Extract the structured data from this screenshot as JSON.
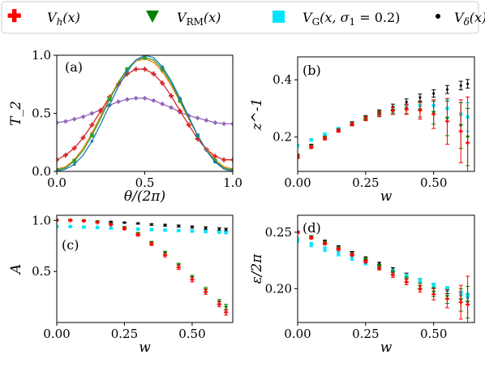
{
  "legend": {
    "entries": [
      {
        "label": "V_h(x)",
        "color": "#ff0000",
        "marker": "plus"
      },
      {
        "label": "V_RM(x)",
        "color": "#008000",
        "marker": "triangle-down"
      },
      {
        "label": "V_G(x, σ_1 = 0.2)",
        "color": "#00e5ff",
        "marker": "square"
      },
      {
        "label": "V_δ(x)",
        "color": "#000000",
        "marker": "dot"
      }
    ]
  },
  "chart_data": [
    {
      "panel": "(a)",
      "type": "line",
      "xlabel": "θ/(2π)",
      "ylabel": "T_2",
      "xlim": [
        0.0,
        1.0
      ],
      "ylim": [
        0.0,
        1.0
      ],
      "xticks": [
        "0.0",
        "0.5",
        "1.0"
      ],
      "yticks": [
        "0.0",
        "0.5",
        "1.0"
      ],
      "x": [
        0.0,
        0.05,
        0.1,
        0.15,
        0.2,
        0.25,
        0.3,
        0.35,
        0.4,
        0.45,
        0.5,
        0.55,
        0.6,
        0.65,
        0.7,
        0.75,
        0.8,
        0.85,
        0.9,
        0.95,
        1.0
      ],
      "series": [
        {
          "color": "#9467bd",
          "marker": "diamond",
          "values": [
            0.42,
            0.43,
            0.45,
            0.47,
            0.5,
            0.53,
            0.57,
            0.6,
            0.62,
            0.63,
            0.63,
            0.61,
            0.58,
            0.55,
            0.51,
            0.48,
            0.46,
            0.44,
            0.42,
            0.41,
            0.41
          ]
        },
        {
          "color": "#d62728",
          "marker": "plus",
          "values": [
            0.1,
            0.14,
            0.2,
            0.29,
            0.4,
            0.52,
            0.64,
            0.75,
            0.84,
            0.88,
            0.88,
            0.84,
            0.76,
            0.65,
            0.52,
            0.4,
            0.28,
            0.19,
            0.13,
            0.1,
            0.1
          ]
        },
        {
          "color": "#ff7f0e",
          "marker": "dot",
          "values": [
            0.02,
            0.04,
            0.1,
            0.2,
            0.33,
            0.48,
            0.63,
            0.77,
            0.88,
            0.95,
            0.97,
            0.94,
            0.86,
            0.74,
            0.6,
            0.45,
            0.31,
            0.19,
            0.1,
            0.04,
            0.02
          ]
        },
        {
          "color": "#2ca02c",
          "marker": "square",
          "values": [
            0.01,
            0.03,
            0.09,
            0.18,
            0.31,
            0.46,
            0.62,
            0.76,
            0.88,
            0.96,
            0.98,
            0.96,
            0.88,
            0.76,
            0.61,
            0.46,
            0.31,
            0.18,
            0.09,
            0.03,
            0.01
          ]
        },
        {
          "color": "#1f77b4",
          "marker": "dot",
          "values": [
            0.0,
            0.02,
            0.06,
            0.14,
            0.26,
            0.41,
            0.57,
            0.73,
            0.86,
            0.96,
            1.0,
            0.98,
            0.9,
            0.78,
            0.63,
            0.47,
            0.31,
            0.18,
            0.08,
            0.02,
            0.0
          ]
        }
      ]
    },
    {
      "panel": "(b)",
      "type": "scatter",
      "xlabel": "w",
      "ylabel": "z^-1",
      "xlim": [
        0.0,
        0.65
      ],
      "ylim": [
        0.08,
        0.48
      ],
      "xticks": [
        "0.00",
        "0.25",
        "0.50"
      ],
      "yticks": [
        "0.2",
        "0.4"
      ],
      "series": [
        {
          "color": "#000000",
          "marker": "dot",
          "x": [
            0.0,
            0.05,
            0.1,
            0.15,
            0.2,
            0.25,
            0.3,
            0.35,
            0.4,
            0.45,
            0.5,
            0.55,
            0.6,
            0.625
          ],
          "values": [
            0.135,
            0.17,
            0.2,
            0.225,
            0.248,
            0.268,
            0.287,
            0.305,
            0.322,
            0.338,
            0.352,
            0.366,
            0.38,
            0.386
          ],
          "errors": [
            0.005,
            0.005,
            0.005,
            0.005,
            0.006,
            0.007,
            0.008,
            0.01,
            0.011,
            0.012,
            0.013,
            0.014,
            0.015,
            0.015
          ]
        },
        {
          "color": "#00e5ff",
          "marker": "square",
          "x": [
            0.0,
            0.05,
            0.1,
            0.15,
            0.2,
            0.25,
            0.3,
            0.35,
            0.4,
            0.45,
            0.5,
            0.55,
            0.6,
            0.625
          ],
          "values": [
            0.17,
            0.19,
            0.21,
            0.23,
            0.248,
            0.264,
            0.279,
            0.292,
            0.303,
            0.31,
            0.31,
            0.3,
            0.28,
            0.27
          ],
          "errors": [
            0.004,
            0.004,
            0.004,
            0.004,
            0.005,
            0.005,
            0.006,
            0.007,
            0.008,
            0.012,
            0.02,
            0.03,
            0.04,
            0.05
          ]
        },
        {
          "color": "#008000",
          "marker": "triangle-down",
          "x": [
            0.0,
            0.05,
            0.1,
            0.15,
            0.2,
            0.25,
            0.3,
            0.35,
            0.4,
            0.45,
            0.5,
            0.55,
            0.6,
            0.625
          ],
          "values": [
            0.133,
            0.168,
            0.198,
            0.224,
            0.247,
            0.266,
            0.282,
            0.293,
            0.298,
            0.295,
            0.285,
            0.265,
            0.24,
            0.2
          ],
          "errors": [
            0.005,
            0.005,
            0.005,
            0.005,
            0.006,
            0.007,
            0.009,
            0.012,
            0.016,
            0.025,
            0.04,
            0.06,
            0.08,
            0.1
          ]
        },
        {
          "color": "#ff0000",
          "marker": "plus",
          "x": [
            0.0,
            0.05,
            0.1,
            0.15,
            0.2,
            0.25,
            0.3,
            0.35,
            0.4,
            0.45,
            0.5,
            0.55,
            0.6,
            0.625
          ],
          "values": [
            0.13,
            0.165,
            0.195,
            0.222,
            0.245,
            0.264,
            0.28,
            0.292,
            0.297,
            0.293,
            0.28,
            0.255,
            0.22,
            0.18
          ],
          "errors": [
            0.005,
            0.005,
            0.005,
            0.005,
            0.006,
            0.007,
            0.009,
            0.013,
            0.018,
            0.03,
            0.05,
            0.08,
            0.11,
            0.16
          ]
        }
      ]
    },
    {
      "panel": "(c)",
      "type": "scatter",
      "xlabel": "w",
      "ylabel": "A",
      "xlim": [
        0.0,
        0.65
      ],
      "ylim": [
        0.0,
        1.05
      ],
      "xticks": [
        "0.00",
        "0.25",
        "0.50"
      ],
      "yticks": [
        "0.5",
        "1.0"
      ],
      "series": [
        {
          "color": "#000000",
          "marker": "dot",
          "x": [
            0.0,
            0.05,
            0.1,
            0.15,
            0.2,
            0.25,
            0.3,
            0.35,
            0.4,
            0.45,
            0.5,
            0.55,
            0.6,
            0.625
          ],
          "values": [
            1.0,
            1.0,
            0.995,
            0.99,
            0.985,
            0.978,
            0.97,
            0.96,
            0.953,
            0.945,
            0.935,
            0.925,
            0.915,
            0.91
          ],
          "errors": [
            0.005,
            0.005,
            0.005,
            0.005,
            0.006,
            0.006,
            0.007,
            0.008,
            0.009,
            0.01,
            0.011,
            0.012,
            0.013,
            0.013
          ]
        },
        {
          "color": "#00e5ff",
          "marker": "square",
          "x": [
            0.0,
            0.05,
            0.1,
            0.15,
            0.2,
            0.25,
            0.3,
            0.35,
            0.4,
            0.45,
            0.5,
            0.55,
            0.6,
            0.625
          ],
          "values": [
            0.94,
            0.94,
            0.935,
            0.93,
            0.925,
            0.92,
            0.915,
            0.91,
            0.905,
            0.9,
            0.895,
            0.89,
            0.885,
            0.88
          ],
          "errors": [
            0.005,
            0.005,
            0.005,
            0.005,
            0.005,
            0.005,
            0.006,
            0.006,
            0.006,
            0.007,
            0.007,
            0.008,
            0.008,
            0.008
          ]
        },
        {
          "color": "#008000",
          "marker": "triangle-down",
          "x": [
            0.0,
            0.05,
            0.1,
            0.15,
            0.2,
            0.25,
            0.3,
            0.35,
            0.4,
            0.45,
            0.5,
            0.55,
            0.6,
            0.625
          ],
          "values": [
            1.0,
            1.0,
            0.995,
            0.985,
            0.965,
            0.93,
            0.87,
            0.78,
            0.68,
            0.56,
            0.44,
            0.32,
            0.2,
            0.15
          ],
          "errors": [
            0.005,
            0.005,
            0.005,
            0.006,
            0.007,
            0.009,
            0.012,
            0.015,
            0.018,
            0.02,
            0.022,
            0.024,
            0.026,
            0.028
          ]
        },
        {
          "color": "#ff0000",
          "marker": "plus",
          "x": [
            0.0,
            0.05,
            0.1,
            0.15,
            0.2,
            0.25,
            0.3,
            0.35,
            0.4,
            0.45,
            0.5,
            0.55,
            0.6,
            0.625
          ],
          "values": [
            1.0,
            1.0,
            0.995,
            0.98,
            0.96,
            0.92,
            0.86,
            0.77,
            0.66,
            0.54,
            0.42,
            0.3,
            0.18,
            0.1
          ],
          "errors": [
            0.005,
            0.005,
            0.005,
            0.006,
            0.007,
            0.009,
            0.012,
            0.015,
            0.018,
            0.02,
            0.022,
            0.024,
            0.026,
            0.028
          ]
        }
      ]
    },
    {
      "panel": "(d)",
      "type": "scatter",
      "xlabel": "w",
      "ylabel": "ε/2π",
      "xlim": [
        0.0,
        0.65
      ],
      "ylim": [
        0.17,
        0.265
      ],
      "xticks": [
        "0.00",
        "0.25",
        "0.50"
      ],
      "yticks": [
        "0.20",
        "0.25"
      ],
      "series": [
        {
          "color": "#000000",
          "marker": "dot",
          "x": [
            0.0,
            0.05,
            0.1,
            0.15,
            0.2,
            0.25,
            0.3,
            0.35,
            0.4,
            0.45,
            0.5,
            0.55,
            0.6,
            0.625
          ],
          "values": [
            0.25,
            0.246,
            0.242,
            0.237,
            0.232,
            0.227,
            0.222,
            0.217,
            0.212,
            0.207,
            0.202,
            0.198,
            0.194,
            0.192
          ],
          "errors": [
            0.001,
            0.001,
            0.001,
            0.001,
            0.001,
            0.0012,
            0.0014,
            0.0016,
            0.0018,
            0.002,
            0.002,
            0.0025,
            0.003,
            0.003
          ]
        },
        {
          "color": "#00e5ff",
          "marker": "square",
          "x": [
            0.0,
            0.05,
            0.1,
            0.15,
            0.2,
            0.25,
            0.3,
            0.35,
            0.4,
            0.45,
            0.5,
            0.55,
            0.6,
            0.625
          ],
          "values": [
            0.243,
            0.239,
            0.235,
            0.231,
            0.227,
            0.223,
            0.219,
            0.215,
            0.211,
            0.207,
            0.203,
            0.2,
            0.196,
            0.194
          ],
          "errors": [
            0.002,
            0.002,
            0.002,
            0.002,
            0.002,
            0.002,
            0.002,
            0.002,
            0.002,
            0.002,
            0.002,
            0.002,
            0.002,
            0.002
          ]
        },
        {
          "color": "#008000",
          "marker": "triangle-down",
          "x": [
            0.0,
            0.05,
            0.1,
            0.15,
            0.2,
            0.25,
            0.3,
            0.35,
            0.4,
            0.45,
            0.5,
            0.55,
            0.6,
            0.625
          ],
          "values": [
            0.25,
            0.246,
            0.241,
            0.236,
            0.231,
            0.226,
            0.22,
            0.214,
            0.208,
            0.202,
            0.197,
            0.193,
            0.19,
            0.188
          ],
          "errors": [
            0.001,
            0.001,
            0.001,
            0.001,
            0.001,
            0.0012,
            0.0015,
            0.002,
            0.0025,
            0.003,
            0.004,
            0.006,
            0.01,
            0.014
          ]
        },
        {
          "color": "#ff0000",
          "marker": "plus",
          "x": [
            0.0,
            0.05,
            0.1,
            0.15,
            0.2,
            0.25,
            0.3,
            0.35,
            0.4,
            0.45,
            0.5,
            0.55,
            0.6,
            0.625
          ],
          "values": [
            0.25,
            0.245,
            0.24,
            0.235,
            0.23,
            0.224,
            0.218,
            0.212,
            0.206,
            0.2,
            0.195,
            0.191,
            0.188,
            0.186
          ],
          "errors": [
            0.001,
            0.001,
            0.001,
            0.001,
            0.001,
            0.0012,
            0.0015,
            0.002,
            0.0025,
            0.003,
            0.005,
            0.008,
            0.015,
            0.025
          ]
        }
      ]
    }
  ]
}
